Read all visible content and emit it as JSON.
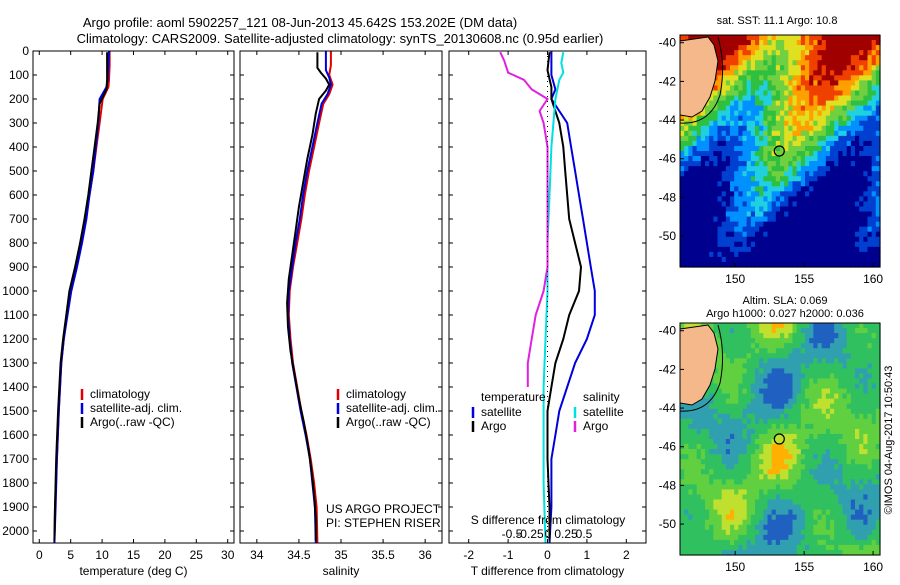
{
  "title": {
    "line1": "Argo profile: aoml 5902257_121 08-Jun-2013 45.642S 153.202E (DM data)",
    "line2": "Climatology: CARS2009. Satellite-adjusted climatology: synTS_20130608.nc (0.95d earlier)"
  },
  "colors": {
    "climatology": "#e00000",
    "satellite": "#0000dd",
    "argo": "#000000",
    "sat_salinity": "#00e0e0",
    "argo_salinity": "#e020e0",
    "land": "#f4b88a"
  },
  "chart_data": [
    {
      "type": "line",
      "id": "temperature",
      "xlabel": "temperature (deg C)",
      "xlim": [
        -1,
        31
      ],
      "ylim": [
        0,
        2050
      ],
      "xticks": [
        0,
        5,
        10,
        15,
        20,
        25,
        30
      ],
      "yticks": [
        0,
        100,
        200,
        300,
        400,
        500,
        600,
        700,
        800,
        900,
        1000,
        1100,
        1200,
        1300,
        1400,
        1500,
        1600,
        1700,
        1800,
        1900,
        2000
      ],
      "legend": [
        "climatology",
        "satellite-adj. clim.",
        "Argo(..raw -QC)"
      ],
      "series": [
        {
          "name": "climatology",
          "color": "#e00000",
          "points": [
            [
              11.2,
              0
            ],
            [
              11.2,
              60
            ],
            [
              11.1,
              120
            ],
            [
              11,
              150
            ],
            [
              10.1,
              200
            ],
            [
              9.6,
              300
            ],
            [
              9.1,
              400
            ],
            [
              8.6,
              500
            ],
            [
              8,
              600
            ],
            [
              7.3,
              700
            ],
            [
              6.6,
              800
            ],
            [
              5.8,
              900
            ],
            [
              5,
              1000
            ],
            [
              4.4,
              1100
            ],
            [
              3.9,
              1200
            ],
            [
              3.5,
              1300
            ],
            [
              3.1,
              1500
            ],
            [
              2.8,
              1700
            ],
            [
              2.5,
              1900
            ],
            [
              2.4,
              2050
            ]
          ]
        },
        {
          "name": "satellite-adj. clim.",
          "color": "#0000dd",
          "points": [
            [
              11.1,
              0
            ],
            [
              11,
              60
            ],
            [
              10.9,
              120
            ],
            [
              10.7,
              150
            ],
            [
              9.6,
              200
            ],
            [
              9.4,
              300
            ],
            [
              9,
              400
            ],
            [
              8.6,
              500
            ],
            [
              8,
              600
            ],
            [
              7.5,
              700
            ],
            [
              6.8,
              800
            ],
            [
              6,
              900
            ],
            [
              5.1,
              1000
            ],
            [
              4.5,
              1100
            ],
            [
              3.9,
              1200
            ],
            [
              3.5,
              1300
            ],
            [
              3.1,
              1500
            ],
            [
              2.8,
              1700
            ],
            [
              2.6,
              1900
            ],
            [
              2.4,
              2050
            ]
          ]
        },
        {
          "name": "Argo(..raw -QC)",
          "color": "#000000",
          "points": [
            [
              10.8,
              5
            ],
            [
              10.8,
              60
            ],
            [
              10.8,
              120
            ],
            [
              10.7,
              160
            ],
            [
              9.6,
              220
            ],
            [
              9.3,
              300
            ],
            [
              8.8,
              400
            ],
            [
              8.3,
              500
            ],
            [
              7.8,
              600
            ],
            [
              7.2,
              700
            ],
            [
              6.5,
              800
            ],
            [
              5.7,
              900
            ],
            [
              4.8,
              1000
            ],
            [
              4.3,
              1100
            ],
            [
              3.8,
              1200
            ],
            [
              3.4,
              1300
            ],
            [
              3,
              1500
            ],
            [
              2.7,
              1700
            ],
            [
              2.5,
              1900
            ],
            [
              2.4,
              2040
            ]
          ]
        }
      ]
    },
    {
      "type": "line",
      "id": "salinity",
      "xlabel": "salinity",
      "xlim": [
        33.8,
        36.2
      ],
      "ylim": [
        0,
        2050
      ],
      "xticks": [
        34,
        34.5,
        35,
        35.5,
        36
      ],
      "xticklabels": [
        "34",
        "34.5",
        "35",
        "35.5",
        "36"
      ],
      "legend": [
        "climatology",
        "satellite-adj. clim.",
        "Argo(..raw -QC)"
      ],
      "annotation": [
        "US ARGO PROJECT",
        "PI: STEPHEN RISER"
      ],
      "series": [
        {
          "name": "climatology",
          "color": "#e00000",
          "points": [
            [
              34.88,
              0
            ],
            [
              34.88,
              60
            ],
            [
              34.86,
              100
            ],
            [
              34.9,
              140
            ],
            [
              34.86,
              180
            ],
            [
              34.79,
              220
            ],
            [
              34.74,
              300
            ],
            [
              34.68,
              400
            ],
            [
              34.62,
              500
            ],
            [
              34.57,
              600
            ],
            [
              34.53,
              700
            ],
            [
              34.48,
              800
            ],
            [
              34.43,
              900
            ],
            [
              34.39,
              1000
            ],
            [
              34.38,
              1100
            ],
            [
              34.4,
              1200
            ],
            [
              34.43,
              1300
            ],
            [
              34.48,
              1400
            ],
            [
              34.53,
              1500
            ],
            [
              34.59,
              1600
            ],
            [
              34.64,
              1700
            ],
            [
              34.68,
              1800
            ],
            [
              34.71,
              1900
            ],
            [
              34.72,
              2050
            ]
          ]
        },
        {
          "name": "satellite-adj. clim.",
          "color": "#0000dd",
          "points": [
            [
              34.82,
              0
            ],
            [
              34.82,
              80
            ],
            [
              34.86,
              110
            ],
            [
              34.88,
              140
            ],
            [
              34.84,
              180
            ],
            [
              34.77,
              220
            ],
            [
              34.72,
              300
            ],
            [
              34.66,
              400
            ],
            [
              34.6,
              500
            ],
            [
              34.55,
              600
            ],
            [
              34.51,
              700
            ],
            [
              34.46,
              800
            ],
            [
              34.42,
              900
            ],
            [
              34.38,
              1000
            ],
            [
              34.37,
              1100
            ],
            [
              34.39,
              1200
            ],
            [
              34.42,
              1300
            ],
            [
              34.47,
              1400
            ],
            [
              34.52,
              1500
            ],
            [
              34.58,
              1600
            ],
            [
              34.63,
              1700
            ],
            [
              34.66,
              1800
            ],
            [
              34.69,
              1900
            ],
            [
              34.7,
              2050
            ]
          ]
        },
        {
          "name": "Argo(..raw -QC)",
          "color": "#000000",
          "points": [
            [
              34.72,
              5
            ],
            [
              34.72,
              70
            ],
            [
              34.76,
              90
            ],
            [
              34.82,
              115
            ],
            [
              34.86,
              140
            ],
            [
              34.82,
              165
            ],
            [
              34.74,
              200
            ],
            [
              34.7,
              260
            ],
            [
              34.66,
              350
            ],
            [
              34.6,
              450
            ],
            [
              34.55,
              550
            ],
            [
              34.5,
              650
            ],
            [
              34.46,
              750
            ],
            [
              34.42,
              850
            ],
            [
              34.38,
              950
            ],
            [
              34.36,
              1050
            ],
            [
              34.37,
              1150
            ],
            [
              34.4,
              1250
            ],
            [
              34.45,
              1350
            ],
            [
              34.5,
              1450
            ],
            [
              34.56,
              1550
            ],
            [
              34.61,
              1650
            ],
            [
              34.65,
              1750
            ],
            [
              34.68,
              1850
            ],
            [
              34.7,
              1950
            ],
            [
              34.7,
              2040
            ]
          ]
        }
      ]
    },
    {
      "type": "line",
      "id": "differences",
      "xlabel": "T difference from climatology",
      "xlabel2": "S difference from climatology",
      "xlim": [
        -2.5,
        2.5
      ],
      "ylim": [
        0,
        2050
      ],
      "xticks": [
        -2,
        -1,
        0,
        1,
        2
      ],
      "xticklabels": [
        "-2",
        "-1",
        "0",
        "1",
        "2"
      ],
      "sticks": [
        -0.5,
        -0.25,
        0,
        0.25,
        0.5
      ],
      "sticklabels": [
        "-0.5",
        "-0.25",
        "0",
        "0.25",
        "0.5"
      ],
      "legend_header": [
        "temperature",
        "salinity"
      ],
      "legend": [
        "satellite",
        "Argo",
        "satellite",
        "Argo"
      ],
      "series": [
        {
          "name": "T satellite",
          "color": "#0000dd",
          "points": [
            [
              0.1,
              0
            ],
            [
              0.1,
              100
            ],
            [
              0.2,
              160
            ],
            [
              0.1,
              200
            ],
            [
              0.5,
              300
            ],
            [
              0.6,
              400
            ],
            [
              0.7,
              500
            ],
            [
              0.8,
              600
            ],
            [
              0.9,
              700
            ],
            [
              1,
              800
            ],
            [
              1.1,
              900
            ],
            [
              1.2,
              1000
            ],
            [
              1.2,
              1100
            ],
            [
              1,
              1200
            ],
            [
              0.7,
              1300
            ],
            [
              0.5,
              1400
            ],
            [
              0.3,
              1500
            ],
            [
              0.2,
              1600
            ],
            [
              0.1,
              1700
            ],
            [
              0.1,
              1900
            ],
            [
              0.05,
              2050
            ]
          ]
        },
        {
          "name": "T Argo",
          "color": "#000000",
          "points": [
            [
              0.05,
              5
            ],
            [
              0,
              80
            ],
            [
              0.1,
              150
            ],
            [
              0.1,
              200
            ],
            [
              0.3,
              300
            ],
            [
              0.4,
              400
            ],
            [
              0.45,
              500
            ],
            [
              0.5,
              600
            ],
            [
              0.55,
              700
            ],
            [
              0.7,
              800
            ],
            [
              0.85,
              900
            ],
            [
              0.8,
              1000
            ],
            [
              0.55,
              1100
            ],
            [
              0.4,
              1200
            ],
            [
              0.2,
              1300
            ],
            [
              0.1,
              1400
            ],
            [
              0,
              1500
            ],
            [
              0,
              1700
            ],
            [
              0.05,
              1900
            ],
            [
              0.05,
              2040
            ]
          ]
        },
        {
          "name": "S satellite",
          "color": "#00e0e0",
          "points": [
            [
              0.4,
              5
            ],
            [
              0.35,
              50
            ],
            [
              0.4,
              90
            ],
            [
              0.3,
              120
            ],
            [
              0.25,
              160
            ],
            [
              0.2,
              200
            ],
            [
              0.15,
              300
            ],
            [
              0.1,
              400
            ],
            [
              0.05,
              600
            ],
            [
              0,
              800
            ],
            [
              0,
              1000
            ],
            [
              -0.05,
              1200
            ],
            [
              -0.1,
              1400
            ],
            [
              -0.1,
              1600
            ],
            [
              -0.1,
              1800
            ],
            [
              -0.05,
              2050
            ]
          ]
        },
        {
          "name": "S Argo",
          "color": "#e020e0",
          "points": [
            [
              -1.2,
              5
            ],
            [
              -1.1,
              40
            ],
            [
              -1,
              90
            ],
            [
              -0.6,
              120
            ],
            [
              -0.4,
              160
            ],
            [
              0,
              200
            ],
            [
              -0.2,
              250
            ],
            [
              -0.1,
              300
            ],
            [
              0,
              400
            ],
            [
              0,
              500
            ],
            [
              0,
              700
            ],
            [
              0,
              800
            ],
            [
              0,
              900
            ],
            [
              -0.1,
              1000
            ],
            [
              -0.3,
              1100
            ],
            [
              -0.4,
              1200
            ],
            [
              -0.5,
              1300
            ],
            [
              -0.5,
              1400
            ]
          ]
        }
      ]
    }
  ],
  "maps": {
    "sst": {
      "title": "sat. SST: 11.1  Argo: 10.8",
      "xticks": [
        "150",
        "155",
        "160"
      ],
      "yticks": [
        "-40",
        "-42",
        "-44",
        "-46",
        "-48",
        "-50"
      ]
    },
    "sla": {
      "title_line1": "Altim. SLA: 0.069",
      "title_line2": "Argo h1000: 0.027 h2000: 0.036",
      "xticks": [
        "150",
        "155",
        "160"
      ],
      "yticks": [
        "-40",
        "-42",
        "-44",
        "-46",
        "-48",
        "-50"
      ]
    }
  },
  "credit": "©IMOS 04-Aug-2017 10:50:43"
}
